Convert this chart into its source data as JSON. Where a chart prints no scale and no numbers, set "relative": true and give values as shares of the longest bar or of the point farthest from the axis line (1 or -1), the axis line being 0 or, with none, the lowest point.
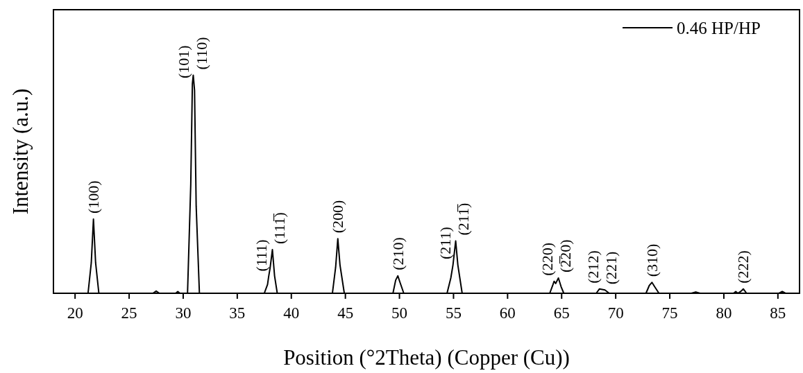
{
  "chart_data": {
    "type": "line",
    "relative": true,
    "xlabel": "Position (°2Theta) (Copper (Cu))",
    "ylabel": "Intensity (a.u.)",
    "xlim": [
      18,
      87
    ],
    "xticks": [
      20,
      25,
      30,
      35,
      40,
      45,
      50,
      55,
      60,
      65,
      70,
      75,
      80,
      85
    ],
    "legend": "top right",
    "marker": "none",
    "line_style": "solid",
    "series": [
      {
        "name": "0.46 HP/HP",
        "color": "#000000",
        "x": [
          18,
          21.2,
          21.5,
          21.7,
          21.9,
          22.2,
          27.2,
          27.5,
          27.8,
          29.3,
          29.5,
          29.7,
          30.4,
          30.7,
          30.85,
          30.93,
          31.05,
          31.2,
          31.5,
          37.5,
          37.8,
          37.9,
          38.05,
          38.25,
          38.45,
          38.7,
          43.8,
          44.1,
          44.3,
          44.5,
          44.9,
          49.4,
          49.65,
          49.85,
          50.05,
          50.4,
          54.4,
          54.75,
          54.95,
          55.2,
          55.4,
          55.8,
          63.9,
          64.2,
          64.3,
          64.45,
          64.7,
          64.95,
          65.2,
          68.2,
          68.5,
          69.0,
          69.4,
          72.8,
          73.1,
          73.35,
          73.6,
          74.0,
          77.0,
          77.4,
          77.8,
          80.9,
          81.1,
          81.3,
          81.6,
          81.8,
          82.1,
          85.1,
          85.4,
          85.7,
          87
        ],
        "values": [
          0,
          0,
          0.14,
          0.34,
          0.14,
          0,
          0,
          0.01,
          0,
          0,
          0.008,
          0,
          0,
          0.5,
          0.96,
          1,
          0.93,
          0.4,
          0,
          0,
          0.04,
          0.075,
          0.12,
          0.2,
          0.08,
          0,
          0,
          0.12,
          0.25,
          0.13,
          0,
          0,
          0.06,
          0.08,
          0.05,
          0,
          0,
          0.07,
          0.13,
          0.24,
          0.13,
          0,
          0,
          0.04,
          0.055,
          0.045,
          0.07,
          0.03,
          0,
          0,
          0.02,
          0.015,
          0,
          0,
          0.035,
          0.05,
          0.03,
          0,
          0,
          0.006,
          0,
          0,
          0.008,
          0,
          0.01,
          0.02,
          0,
          0,
          0.008,
          0,
          0
        ]
      }
    ],
    "annotations": [
      {
        "text": "(100)",
        "x": 21.7,
        "y": 0.34
      },
      {
        "text": "(101)",
        "x": 30.85,
        "y": 0.96
      },
      {
        "text": "(110)",
        "x": 30.93,
        "y": 1
      },
      {
        "text": "(111)",
        "x": 37.9,
        "y": 0.075
      },
      {
        "text": "(111̅)",
        "x": 38.25,
        "y": 0.2
      },
      {
        "text": "(200)",
        "x": 44.3,
        "y": 0.25
      },
      {
        "text": "(210)",
        "x": 49.85,
        "y": 0.08
      },
      {
        "text": "(211)",
        "x": 54.95,
        "y": 0.13
      },
      {
        "text": "(211̅)",
        "x": 55.2,
        "y": 0.24
      },
      {
        "text": "(220)",
        "x": 64.3,
        "y": 0.055
      },
      {
        "text": "(2̅20)",
        "x": 64.7,
        "y": 0.07
      },
      {
        "text": "(212)",
        "x": 68.5,
        "y": 0.02
      },
      {
        "text": "(221)",
        "x": 69.0,
        "y": 0.015
      },
      {
        "text": "(310)",
        "x": 73.35,
        "y": 0.05
      },
      {
        "text": "(222)",
        "x": 81.8,
        "y": 0.02
      }
    ]
  }
}
